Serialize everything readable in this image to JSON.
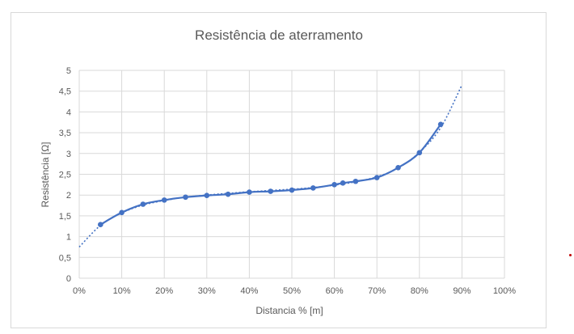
{
  "chart_data": {
    "type": "line",
    "title": "Resistência de aterramento",
    "xlabel": "Distancia % [m]",
    "ylabel": "Resistência [Ω]",
    "x_ticks": [
      "0%",
      "10%",
      "20%",
      "30%",
      "40%",
      "50%",
      "60%",
      "70%",
      "80%",
      "90%",
      "100%"
    ],
    "y_ticks": [
      "0",
      "0,5",
      "1",
      "1,5",
      "2",
      "2,5",
      "3",
      "3,5",
      "4",
      "4,5",
      "5"
    ],
    "xlim": [
      0,
      100
    ],
    "ylim": [
      0,
      5
    ],
    "grid": true,
    "legend": "none",
    "series": [
      {
        "x": [
          5,
          10,
          15,
          20,
          25,
          30,
          35,
          40,
          45,
          50,
          55,
          60,
          62,
          65,
          70,
          75,
          80,
          85
        ],
        "y": [
          1.29,
          1.58,
          1.78,
          1.88,
          1.95,
          1.99,
          2.02,
          2.07,
          2.09,
          2.12,
          2.17,
          2.25,
          2.29,
          2.33,
          2.42,
          2.66,
          3.02,
          3.7
        ],
        "color": "#4472c4"
      }
    ],
    "trendline": {
      "style": "dotted",
      "x": [
        0,
        5,
        10,
        15,
        20,
        25,
        30,
        35,
        40,
        45,
        50,
        55,
        60,
        65,
        70,
        75,
        80,
        85,
        90
      ],
      "y": [
        0.75,
        1.27,
        1.57,
        1.76,
        1.87,
        1.95,
        2.0,
        2.04,
        2.08,
        2.11,
        2.14,
        2.18,
        2.24,
        2.32,
        2.44,
        2.65,
        3.03,
        3.62,
        4.65
      ],
      "color": "#4472c4"
    }
  }
}
